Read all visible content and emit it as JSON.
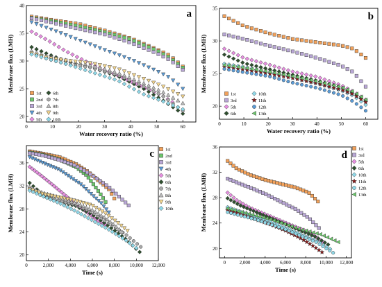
{
  "chart_data": [
    {
      "panel": "a",
      "type": "scatter",
      "xlabel": "Water recovery ratio (%)",
      "ylabel": "Membrane flux (LMH)",
      "xlim": [
        0,
        65
      ],
      "ylim": [
        19,
        40
      ],
      "xticks": [
        0,
        10,
        20,
        30,
        40,
        50,
        60
      ],
      "yticks": [
        20,
        25,
        30,
        35,
        40
      ],
      "legend_columns": 2,
      "series": [
        {
          "name": "1st",
          "marker": "square",
          "color": "#F2A15A",
          "x": [
            2,
            10,
            20,
            30,
            40,
            50,
            55,
            60
          ],
          "y": [
            38.0,
            37.4,
            36.7,
            35.5,
            34.1,
            32.1,
            31.0,
            29.0
          ]
        },
        {
          "name": "2nd",
          "marker": "square",
          "color": "#6CC76C",
          "x": [
            2,
            10,
            20,
            30,
            40,
            50,
            55,
            60
          ],
          "y": [
            37.8,
            37.2,
            36.3,
            35.2,
            33.9,
            31.9,
            30.6,
            28.8
          ]
        },
        {
          "name": "3rd",
          "marker": "square",
          "color": "#B9A7D6",
          "x": [
            2,
            10,
            20,
            30,
            40,
            50,
            55,
            60
          ],
          "y": [
            37.7,
            36.9,
            35.8,
            34.8,
            33.3,
            31.4,
            30.2,
            28.4
          ]
        },
        {
          "name": "4th",
          "marker": "triangle-down",
          "color": "#5B9BD5",
          "x": [
            2,
            10,
            20,
            30,
            40,
            50,
            55,
            60
          ],
          "y": [
            37.0,
            35.6,
            33.8,
            32.0,
            30.3,
            28.2,
            27.0,
            25.0
          ]
        },
        {
          "name": "5th",
          "marker": "diamond",
          "color": "#E68FE0",
          "x": [
            2,
            8,
            15,
            25,
            35,
            45,
            52,
            56
          ],
          "y": [
            35.3,
            33.8,
            31.8,
            29.4,
            27.4,
            25.2,
            23.8,
            22.6
          ]
        },
        {
          "name": "6th",
          "marker": "diamond",
          "color": "#2F4F2F",
          "x": [
            2,
            8,
            15,
            25,
            35,
            45,
            52,
            60
          ],
          "y": [
            32.5,
            31.3,
            30.0,
            28.8,
            27.3,
            25.0,
            23.0,
            20.5
          ]
        },
        {
          "name": "7th",
          "marker": "circle",
          "color": "#A9A9A9",
          "x": [
            2,
            8,
            15,
            25,
            35,
            45,
            52,
            60
          ],
          "y": [
            31.5,
            30.4,
            29.5,
            28.8,
            27.5,
            25.4,
            23.8,
            21.0
          ]
        },
        {
          "name": "8th",
          "marker": "triangle-up",
          "color": "#BDBDBD",
          "x": [
            2,
            8,
            15,
            25,
            35,
            45,
            52,
            60
          ],
          "y": [
            31.8,
            30.9,
            30.2,
            29.2,
            27.9,
            26.0,
            24.5,
            22.4
          ]
        },
        {
          "name": "9th",
          "marker": "triangle-down",
          "color": "#F5D78E",
          "x": [
            2,
            8,
            15,
            25,
            35,
            45,
            52,
            60
          ],
          "y": [
            31.4,
            30.6,
            30.1,
            29.6,
            28.6,
            26.8,
            25.5,
            23.6
          ]
        },
        {
          "name": "10th",
          "marker": "diamond",
          "color": "#8FD8E8",
          "x": [
            2,
            8,
            15,
            25,
            35,
            45,
            52,
            60
          ],
          "y": [
            31.2,
            30.4,
            29.5,
            28.0,
            26.5,
            24.0,
            22.8,
            21.3
          ]
        }
      ]
    },
    {
      "panel": "b",
      "type": "scatter",
      "xlabel": "Water recovery ratio (%)",
      "ylabel": "Membrane flux (LMH)",
      "xlim": [
        0,
        65
      ],
      "ylim": [
        18,
        35
      ],
      "xticks": [
        0,
        10,
        20,
        30,
        40,
        50,
        60
      ],
      "yticks": [
        20,
        25,
        30,
        35
      ],
      "legend_columns": 2,
      "series": [
        {
          "name": "1st",
          "marker": "square",
          "color": "#F2A15A",
          "x": [
            2,
            10,
            20,
            30,
            40,
            50,
            55,
            60
          ],
          "y": [
            33.8,
            32.3,
            31.2,
            30.3,
            29.8,
            29.3,
            28.8,
            27.4
          ]
        },
        {
          "name": "3rd",
          "marker": "square",
          "color": "#B9A7D6",
          "x": [
            2,
            10,
            20,
            30,
            40,
            50,
            55,
            60
          ],
          "y": [
            31.0,
            30.3,
            29.3,
            28.4,
            27.4,
            26.2,
            25.2,
            23.0
          ]
        },
        {
          "name": "5th",
          "marker": "diamond",
          "color": "#E68FE0",
          "x": [
            2,
            10,
            20,
            30,
            40,
            50,
            55,
            60
          ],
          "y": [
            28.8,
            27.4,
            26.4,
            25.3,
            24.5,
            23.2,
            22.2,
            21.0
          ]
        },
        {
          "name": "6th",
          "marker": "diamond",
          "color": "#2F4F2F",
          "x": [
            2,
            10,
            20,
            30,
            40,
            50,
            55,
            60
          ],
          "y": [
            27.9,
            26.6,
            25.7,
            24.8,
            23.9,
            22.9,
            22.0,
            20.8
          ]
        },
        {
          "name": "10th",
          "marker": "diamond",
          "color": "#8FD8E8",
          "x": [
            2,
            10,
            20,
            30,
            40,
            50,
            55,
            60
          ],
          "y": [
            26.5,
            26.0,
            25.2,
            24.4,
            23.5,
            22.4,
            21.6,
            20.2
          ]
        },
        {
          "name": "11th",
          "marker": "star",
          "color": "#8B1A1A",
          "x": [
            2,
            10,
            20,
            30,
            40,
            50,
            55,
            60
          ],
          "y": [
            26.0,
            25.6,
            25.0,
            24.3,
            23.5,
            22.5,
            21.8,
            20.6
          ]
        },
        {
          "name": "12th",
          "marker": "circle",
          "color": "#5B9BD5",
          "x": [
            2,
            10,
            20,
            30,
            40,
            50,
            55,
            60
          ],
          "y": [
            25.7,
            25.2,
            24.6,
            23.6,
            22.8,
            21.7,
            20.7,
            19.3
          ]
        },
        {
          "name": "13th",
          "marker": "triangle-left",
          "color": "#6CC76C",
          "x": [
            2,
            10,
            20,
            30,
            40,
            50,
            55,
            60
          ],
          "y": [
            26.3,
            25.9,
            25.3,
            24.6,
            23.8,
            22.9,
            22.2,
            21.0
          ]
        }
      ]
    },
    {
      "panel": "c",
      "type": "scatter",
      "xlabel": "Time (s)",
      "ylabel": "Membrane flux (LMH)",
      "xlim": [
        0,
        12000
      ],
      "ylim": [
        19,
        39
      ],
      "xticks": [
        0,
        2000,
        4000,
        6000,
        8000,
        10000,
        12000
      ],
      "xticklabels": [
        "0",
        "2,000",
        "4,000",
        "6,000",
        "8,000",
        "10,000",
        "12,000"
      ],
      "yticks": [
        20,
        24,
        28,
        32,
        36
      ],
      "legend_columns": 1,
      "series": [
        {
          "name": "1st",
          "marker": "square",
          "color": "#F2A15A",
          "x": [
            300,
            1500,
            3000,
            4500,
            5500,
            6500,
            7500,
            8000
          ],
          "y": [
            38.0,
            37.6,
            37.0,
            35.8,
            34.6,
            33.0,
            31.4,
            29.8
          ]
        },
        {
          "name": "2nd",
          "marker": "square",
          "color": "#6CC76C",
          "x": [
            300,
            1500,
            3000,
            4500,
            5500,
            6200,
            6800,
            7200
          ],
          "y": [
            37.8,
            37.4,
            36.6,
            35.3,
            33.8,
            32.0,
            30.4,
            29.2
          ]
        },
        {
          "name": "3rd",
          "marker": "square",
          "color": "#B9A7D6",
          "x": [
            300,
            1500,
            3000,
            4500,
            6000,
            7500,
            8500,
            9300
          ],
          "y": [
            37.7,
            37.3,
            36.5,
            35.5,
            33.8,
            31.8,
            30.0,
            28.6
          ]
        },
        {
          "name": "4th",
          "marker": "triangle-down",
          "color": "#5B9BD5",
          "x": [
            300,
            1500,
            3000,
            4000,
            5000,
            6000,
            6800,
            7500
          ],
          "y": [
            37.0,
            36.0,
            34.8,
            33.5,
            32.2,
            30.4,
            29.0,
            27.4
          ]
        },
        {
          "name": "5th",
          "marker": "diamond",
          "color": "#E68FE0",
          "x": [
            300,
            1200,
            2500,
            3500,
            4500,
            5500,
            6500,
            7200
          ],
          "y": [
            35.3,
            34.0,
            32.0,
            30.4,
            28.8,
            27.4,
            26.0,
            25.2
          ]
        },
        {
          "name": "6th",
          "marker": "diamond",
          "color": "#2F4F2F",
          "x": [
            300,
            1500,
            3000,
            4500,
            6000,
            7500,
            9000,
            10300
          ],
          "y": [
            32.5,
            30.4,
            29.3,
            28.5,
            27.0,
            25.0,
            22.8,
            20.5
          ]
        },
        {
          "name": "7th",
          "marker": "circle",
          "color": "#A9A9A9",
          "x": [
            300,
            1500,
            3000,
            4500,
            6000,
            7500,
            9000,
            10400
          ],
          "y": [
            31.5,
            30.2,
            29.4,
            28.7,
            27.4,
            25.5,
            23.6,
            21.4
          ]
        },
        {
          "name": "8th",
          "marker": "triangle-up",
          "color": "#BDBDBD",
          "x": [
            300,
            1500,
            3000,
            4500,
            6000,
            7200,
            8000,
            8700
          ],
          "y": [
            31.8,
            30.8,
            30.0,
            29.0,
            27.8,
            26.4,
            25.2,
            24.0
          ]
        },
        {
          "name": "9th",
          "marker": "triangle-down",
          "color": "#F5D78E",
          "x": [
            300,
            1500,
            3000,
            4500,
            6000,
            7200,
            8300,
            9200
          ],
          "y": [
            31.4,
            30.6,
            30.0,
            29.4,
            28.6,
            27.2,
            25.6,
            24.2
          ]
        },
        {
          "name": "10th",
          "marker": "diamond",
          "color": "#8FD8E8",
          "x": [
            300,
            1500,
            3000,
            4500,
            6000,
            7500,
            9000,
            10000
          ],
          "y": [
            31.2,
            30.2,
            29.0,
            27.6,
            26.0,
            24.4,
            22.6,
            21.2
          ]
        }
      ]
    },
    {
      "panel": "d",
      "type": "scatter",
      "xlabel": "Time (s)",
      "ylabel": "Membrane flux (LMH)",
      "xlim": [
        -500,
        12500
      ],
      "ylim": [
        18.5,
        36
      ],
      "xticks": [
        0,
        2000,
        4000,
        6000,
        8000,
        10000,
        12000
      ],
      "xticklabels": [
        "0",
        "2,000",
        "4,000",
        "6,000",
        "8,000",
        "10,000",
        "12,000"
      ],
      "yticks": [
        20,
        24,
        28,
        32,
        36
      ],
      "legend_columns": 1,
      "series": [
        {
          "name": "1st",
          "marker": "square",
          "color": "#F2A15A",
          "x": [
            300,
            1200,
            2500,
            4000,
            5500,
            7000,
            8300,
            9200
          ],
          "y": [
            33.8,
            32.6,
            31.6,
            30.8,
            30.2,
            29.6,
            28.8,
            27.4
          ]
        },
        {
          "name": "3rd",
          "marker": "square",
          "color": "#B9A7D6",
          "x": [
            300,
            1200,
            2500,
            4000,
            5500,
            7000,
            8300,
            9300
          ],
          "y": [
            31.0,
            30.4,
            29.6,
            28.6,
            27.4,
            26.2,
            24.8,
            23.2
          ]
        },
        {
          "name": "5th",
          "marker": "diamond",
          "color": "#E68FE0",
          "x": [
            300,
            1200,
            2500,
            4000,
            5500,
            7000,
            8500,
            9700
          ],
          "y": [
            28.8,
            27.6,
            26.4,
            25.4,
            24.4,
            23.4,
            22.4,
            21.0
          ]
        },
        {
          "name": "6th",
          "marker": "diamond",
          "color": "#2F4F2F",
          "x": [
            300,
            1500,
            3000,
            4500,
            6000,
            7500,
            9000,
            10200
          ],
          "y": [
            27.9,
            26.8,
            25.8,
            24.8,
            23.8,
            22.8,
            21.8,
            20.6
          ]
        },
        {
          "name": "10th",
          "marker": "diamond",
          "color": "#8FD8E8",
          "x": [
            300,
            1500,
            3000,
            4500,
            6000,
            7500,
            9000,
            10400
          ],
          "y": [
            26.5,
            25.8,
            25.0,
            24.2,
            23.2,
            22.2,
            21.2,
            19.9
          ]
        },
        {
          "name": "11th",
          "marker": "star",
          "color": "#8B1A1A",
          "x": [
            300,
            1500,
            3000,
            4500,
            6000,
            7500,
            8700,
            9600
          ],
          "y": [
            26.0,
            25.4,
            24.6,
            23.8,
            22.8,
            21.6,
            20.4,
            19.4
          ]
        },
        {
          "name": "12th",
          "marker": "circle",
          "color": "#8FD8E8",
          "x": [
            300,
            1500,
            3000,
            4500,
            6000,
            7500,
            9000,
            10700
          ],
          "y": [
            25.7,
            25.2,
            24.6,
            23.8,
            23.0,
            22.0,
            21.0,
            19.3
          ]
        },
        {
          "name": "13th",
          "marker": "triangle-left",
          "color": "#6CC76C",
          "x": [
            300,
            1500,
            3000,
            4500,
            6000,
            7500,
            9500,
            11200
          ],
          "y": [
            26.3,
            25.8,
            25.2,
            24.6,
            23.8,
            23.0,
            22.2,
            21.0
          ]
        }
      ]
    }
  ]
}
